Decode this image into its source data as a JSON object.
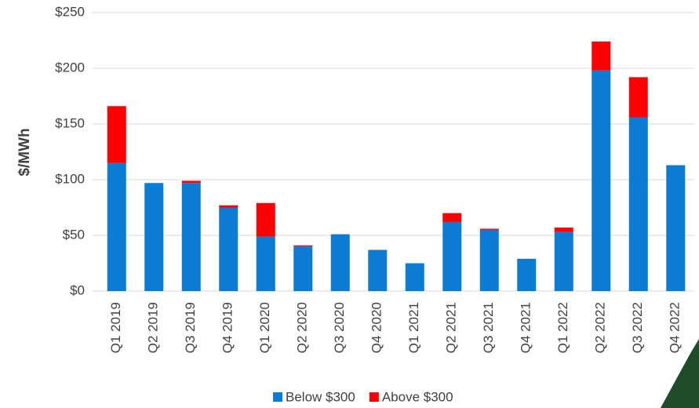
{
  "chart_data": {
    "type": "stacked_bar",
    "y_label": "$/MWh",
    "categories": [
      "Q1 2019",
      "Q2 2019",
      "Q3 2019",
      "Q4 2019",
      "Q1 2020",
      "Q2 2020",
      "Q3 2020",
      "Q4 2020",
      "Q1 2021",
      "Q2 2021",
      "Q3 2021",
      "Q4 2021",
      "Q1 2022",
      "Q2 2022",
      "Q3 2022",
      "Q4 2022"
    ],
    "series": [
      {
        "name": "Below $300",
        "color": "#0b7bd4",
        "values": [
          115,
          97,
          97,
          75,
          49,
          40,
          51,
          37,
          25,
          62,
          55,
          29,
          53,
          198,
          156,
          113
        ]
      },
      {
        "name": "Above $300",
        "color": "#ff0000",
        "values": [
          51,
          0,
          2,
          2,
          30,
          1,
          0,
          0,
          0,
          8,
          1,
          0,
          4,
          26,
          36,
          0
        ]
      }
    ],
    "ylim": [
      0,
      250
    ],
    "yticks": [
      {
        "value": 0,
        "label": "$0"
      },
      {
        "value": 50,
        "label": "$50"
      },
      {
        "value": 100,
        "label": "$100"
      },
      {
        "value": 150,
        "label": "$150"
      },
      {
        "value": 200,
        "label": "$200"
      },
      {
        "value": 250,
        "label": "$250"
      }
    ],
    "grid": true,
    "legend": "bottom"
  }
}
